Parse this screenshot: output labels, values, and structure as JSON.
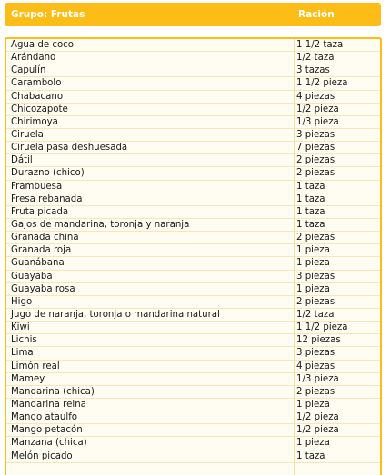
{
  "header": {
    "group_label": "Grupo: Frutas",
    "portion_label": "Ración"
  },
  "rows": [
    {
      "food": "Agua de coco",
      "portion": "1 1/2 taza"
    },
    {
      "food": "Arándano",
      "portion": "1/2 taza"
    },
    {
      "food": "Capulín",
      "portion": "3 tazas"
    },
    {
      "food": "Carambolo",
      "portion": "1 1/2 pieza"
    },
    {
      "food": "Chabacano",
      "portion": "4 piezas"
    },
    {
      "food": "Chicozapote",
      "portion": "1/2 pieza"
    },
    {
      "food": "Chirimoya",
      "portion": "1/3 pieza"
    },
    {
      "food": "Ciruela",
      "portion": "3 piezas"
    },
    {
      "food": "Ciruela pasa deshuesada",
      "portion": "7 piezas"
    },
    {
      "food": "Dátil",
      "portion": "2 piezas"
    },
    {
      "food": "Durazno (chico)",
      "portion": "2 piezas"
    },
    {
      "food": "Frambuesa",
      "portion": "1 taza"
    },
    {
      "food": "Fresa rebanada",
      "portion": "1 taza"
    },
    {
      "food": "Fruta picada",
      "portion": "1 taza"
    },
    {
      "food": "Gajos de mandarina, toronja y naranja",
      "portion": "1 taza"
    },
    {
      "food": "Granada china",
      "portion": "2 piezas"
    },
    {
      "food": "Granada roja",
      "portion": "1 pieza"
    },
    {
      "food": "Guanábana",
      "portion": "1 pieza"
    },
    {
      "food": "Guayaba",
      "portion": "3 piezas"
    },
    {
      "food": "Guayaba rosa",
      "portion": "1 pieza"
    },
    {
      "food": "Higo",
      "portion": "2 piezas"
    },
    {
      "food": "Jugo de naranja, toronja o mandarina natural",
      "portion": "1/2 taza"
    },
    {
      "food": "Kiwi",
      "portion": "1 1/2 pieza"
    },
    {
      "food": "Lichis",
      "portion": "12 piezas"
    },
    {
      "food": "Lima",
      "portion": "3 piezas"
    },
    {
      "food": "Limón real",
      "portion": "4 piezas"
    },
    {
      "food": "Mamey",
      "portion": "1/3 pieza"
    },
    {
      "food": "Mandarina (chica)",
      "portion": "2 piezas"
    },
    {
      "food": "Mandarina reina",
      "portion": "1 pieza"
    },
    {
      "food": "Mango ataulfo",
      "portion": "1/2 pieza"
    },
    {
      "food": "Mango petacón",
      "portion": "1/2 pieza"
    },
    {
      "food": "Manzana (chica)",
      "portion": "1 pieza"
    },
    {
      "food": "Melón picado",
      "portion": "1 taza"
    }
  ],
  "colors": {
    "header_bg": "#fbbd16",
    "header_text": "#ffffff",
    "table_bg": "#fffdf2",
    "border": "#fbbd16"
  }
}
